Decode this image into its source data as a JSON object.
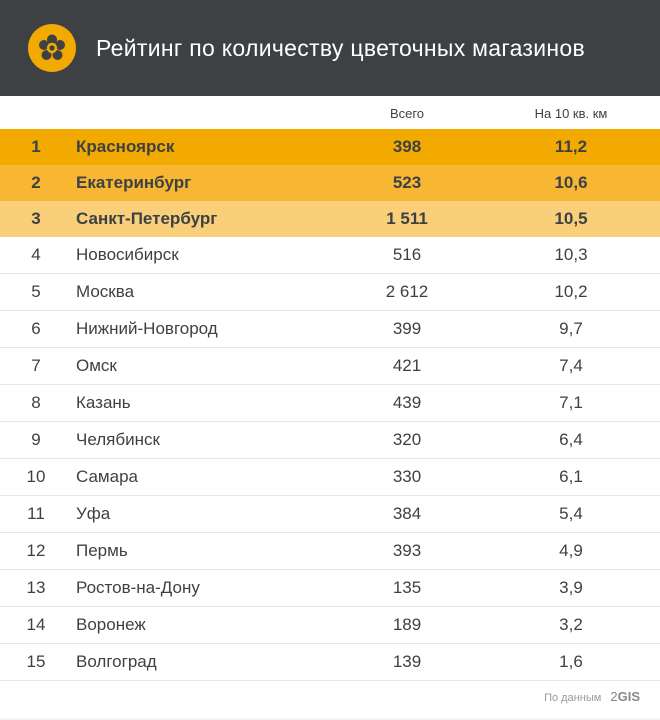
{
  "title": "Рейтинг по количеству цветочных магазинов",
  "columns": {
    "rank": "",
    "city": "",
    "total": "Всего",
    "density": "На 10 кв. км"
  },
  "highlight_colors": [
    "#f2a900",
    "#f7b733",
    "#f9cf79"
  ],
  "row_border_color": "#e8e8e8",
  "text_color": "#3e4144",
  "header_bg": "#3e4144",
  "icon_bg": "#f2a900",
  "icon_fg": "#3e4144",
  "footer_text": "По данным",
  "footer_brand_prefix": "2",
  "footer_brand": "GIS",
  "rows": [
    {
      "rank": "1",
      "city": "Красноярск",
      "total": "398",
      "density": "11,2",
      "highlight": 0
    },
    {
      "rank": "2",
      "city": "Екатеринбург",
      "total": "523",
      "density": "10,6",
      "highlight": 1
    },
    {
      "rank": "3",
      "city": "Санкт-Петербург",
      "total": "1 511",
      "density": "10,5",
      "highlight": 2
    },
    {
      "rank": "4",
      "city": "Новосибирск",
      "total": "516",
      "density": "10,3"
    },
    {
      "rank": "5",
      "city": "Москва",
      "total": "2 612",
      "density": "10,2"
    },
    {
      "rank": "6",
      "city": "Нижний-Новгород",
      "total": "399",
      "density": "9,7"
    },
    {
      "rank": "7",
      "city": "Омск",
      "total": "421",
      "density": "7,4"
    },
    {
      "rank": "8",
      "city": "Казань",
      "total": "439",
      "density": "7,1"
    },
    {
      "rank": "9",
      "city": "Челябинск",
      "total": "320",
      "density": "6,4"
    },
    {
      "rank": "10",
      "city": "Самара",
      "total": "330",
      "density": "6,1"
    },
    {
      "rank": "11",
      "city": "Уфа",
      "total": "384",
      "density": "5,4"
    },
    {
      "rank": "12",
      "city": "Пермь",
      "total": "393",
      "density": "4,9"
    },
    {
      "rank": "13",
      "city": "Ростов-на-Дону",
      "total": "135",
      "density": "3,9"
    },
    {
      "rank": "14",
      "city": "Воронеж",
      "total": "189",
      "density": "3,2"
    },
    {
      "rank": "15",
      "city": "Волгоград",
      "total": "139",
      "density": "1,6"
    }
  ]
}
